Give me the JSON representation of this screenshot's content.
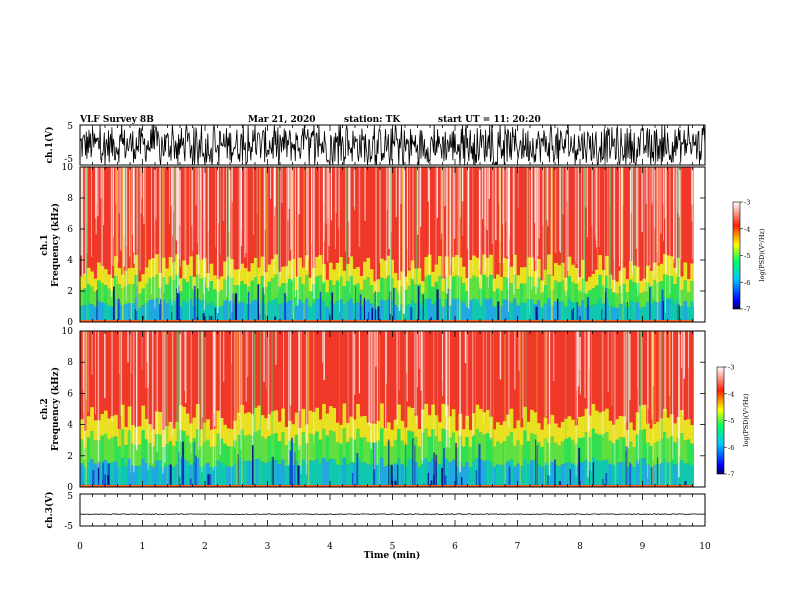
{
  "header": {
    "instrument": "VLF Survey 8B",
    "date": "Mar 21, 2020",
    "station": "station: TK",
    "start": "start UT = 11: 20:20"
  },
  "chart_data": [
    {
      "type": "line",
      "name": "ch1-waveform",
      "ylabel": "ch.1(V)",
      "ylim": [
        -5,
        5
      ],
      "yticks": [
        "5",
        "-5"
      ],
      "xlim": [
        0,
        10
      ],
      "amplitude_v": 4.5
    },
    {
      "type": "heatmap",
      "name": "ch1-spectrogram",
      "ylabel_channel": "ch.1",
      "ylabel": "Frequency (kHz)",
      "ylim": [
        0,
        10
      ],
      "yticks": [
        "0",
        "2",
        "4",
        "6",
        "8",
        "10"
      ],
      "xlim": [
        0,
        10
      ],
      "colorbar": {
        "label": "log(PSD)(V²/Hz)",
        "ticks": [
          "-3",
          "-4",
          "-5",
          "-6",
          "-7"
        ],
        "range": [
          -7,
          -3
        ]
      },
      "band_edge_khz": 3.5
    },
    {
      "type": "heatmap",
      "name": "ch2-spectrogram",
      "ylabel_channel": "ch.2",
      "ylabel": "Frequency (kHz)",
      "ylim": [
        0,
        10
      ],
      "yticks": [
        "0",
        "2",
        "4",
        "6",
        "8",
        "10"
      ],
      "xlim": [
        0,
        10
      ],
      "colorbar": {
        "label": "log(PSD)(V²/Hz)",
        "ticks": [
          "-3",
          "-4",
          "-5",
          "-6",
          "-7"
        ],
        "range": [
          -7,
          -3
        ]
      },
      "band_edge_khz": 4.5
    },
    {
      "type": "line",
      "name": "ch3-waveform",
      "ylabel": "ch.3(V)",
      "ylim": [
        -5,
        5
      ],
      "yticks": [
        "5",
        "-5"
      ],
      "xlim": [
        0,
        10
      ],
      "level_v": -1.3,
      "xlabel": "Time (min)",
      "xticks": [
        "0",
        "1",
        "2",
        "3",
        "4",
        "5",
        "6",
        "7",
        "8",
        "9",
        "10"
      ]
    }
  ]
}
